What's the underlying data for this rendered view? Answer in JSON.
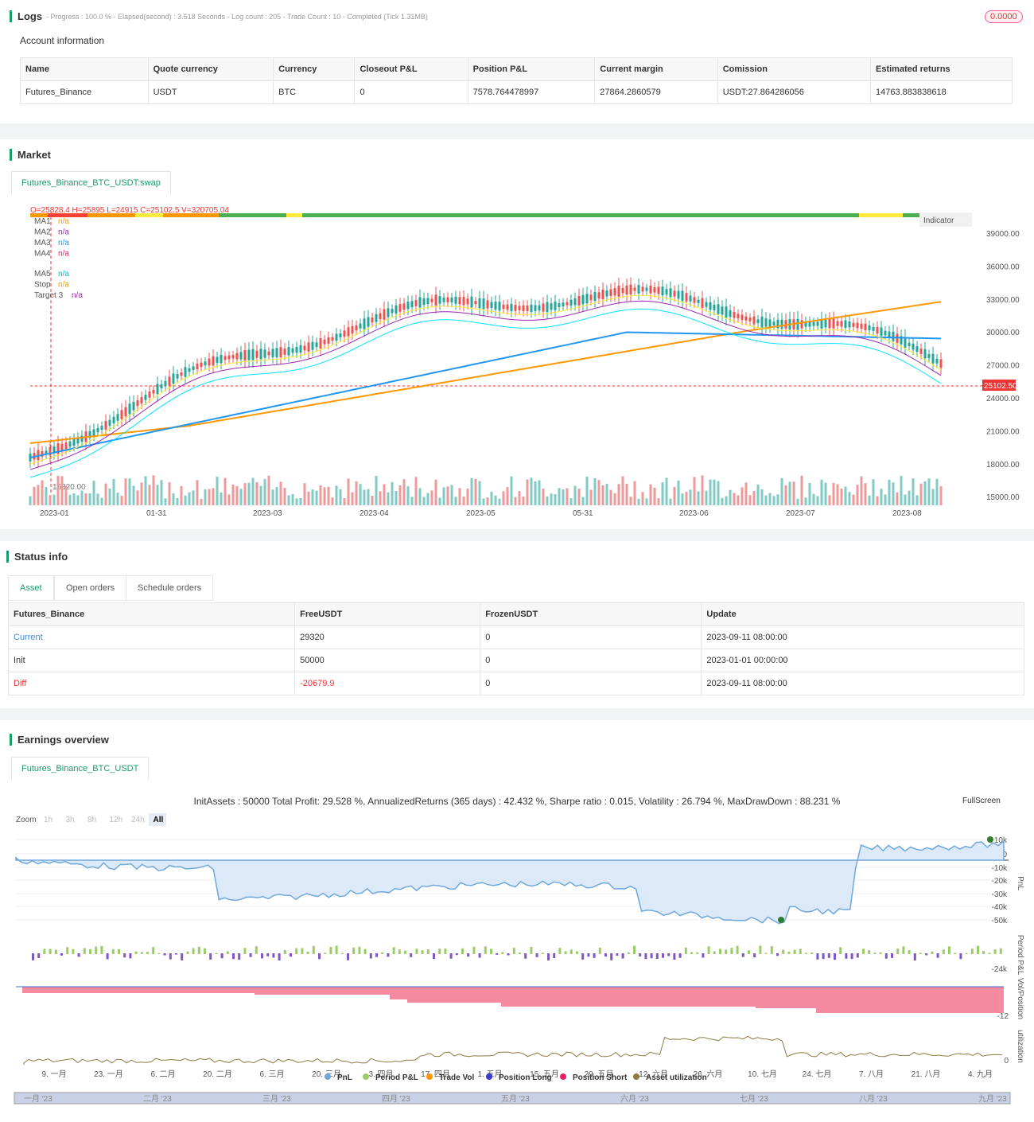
{
  "logs": {
    "title": "Logs",
    "summary": "- Progress : 100.0 % - Elapsed(second) : 3.518 Seconds - Log count : 205 - Trade Count : 10 - Completed (Tick 1.31MB)",
    "badge": "0.0000",
    "account_title": "Account information",
    "account_table": {
      "headers": [
        "Name",
        "Quote currency",
        "Currency",
        "Closeout P&L",
        "Position P&L",
        "Current margin",
        "Comission",
        "Estimated returns"
      ],
      "rows": [
        [
          "Futures_Binance",
          "USDT",
          "BTC",
          "0",
          "7578.764478997",
          "27864.2860579",
          "USDT:27.864286056",
          "14763.883838618"
        ]
      ]
    }
  },
  "market": {
    "title": "Market",
    "tab": "Futures_Binance_BTC_USDT:swap",
    "ohlc": "O=25828.4 H=25895 L=24915 C=25102.5 V=320705.04",
    "legend": [
      [
        "MA1",
        "n/a"
      ],
      [
        "MA2",
        "n/a"
      ],
      [
        "MA3",
        "n/a"
      ],
      [
        "MA4",
        "n/a"
      ],
      [
        "MA5",
        "n/a"
      ],
      [
        "Stop",
        "n/a"
      ],
      [
        "Target 3",
        "n/a"
      ]
    ],
    "indicator": "Indicator",
    "price_ticks": [
      "39000.00",
      "36000.00",
      "33000.00",
      "30000.00",
      "27000.00",
      "24000.00",
      "21000.00",
      "18000.00",
      "15000.00"
    ],
    "last_price": "25102.50",
    "low_label": "16320.00",
    "dates": [
      "2023-01",
      "01-31",
      "2023-03",
      "2023-04",
      "2023-05",
      "05-31",
      "2023-06",
      "2023-07",
      "2023-08"
    ]
  },
  "status": {
    "title": "Status info",
    "tabs": [
      "Asset",
      "Open orders",
      "Schedule orders"
    ],
    "table": {
      "headers": [
        "Futures_Binance",
        "FreeUSDT",
        "FrozenUSDT",
        "Update"
      ],
      "rows": [
        [
          "Current",
          "29320",
          "0",
          "2023-09-11 08:00:00"
        ],
        [
          "Init",
          "50000",
          "0",
          "2023-01-01 00:00:00"
        ],
        [
          "Diff",
          "-20679.9",
          "0",
          "2023-09-11 08:00:00"
        ]
      ]
    }
  },
  "earnings": {
    "title": "Earnings overview",
    "tab": "Futures_Binance_BTC_USDT",
    "summary": "InitAssets : 50000 Total Profit: 29.528 %, AnnualizedReturns (365 days) : 42.432 %, Sharpe ratio : 0.015, Volatility : 26.794 %, MaxDrawDown : 88.231 %",
    "fullscreen": "FullScreen",
    "zoom": "Zoom",
    "zoom_buttons": [
      "1h",
      "3h",
      "8h",
      "12h",
      "24h",
      "All"
    ],
    "pnl_ticks": [
      "10k",
      "0",
      "-10k",
      "-20k",
      "-30k",
      "-40k",
      "-50k"
    ],
    "period_tick": "-24k",
    "vol_tick": "-12",
    "util_tick": "0",
    "axis_titles": [
      "PnL",
      "Period P&L",
      "Vol/Position",
      "utilization"
    ],
    "x_labels": [
      "9. 一月",
      "23. 一月",
      "6. 二月",
      "20. 二月",
      "6. 三月",
      "20. 三月",
      "3. 四月",
      "17. 四月",
      "1. 五月",
      "15. 五月",
      "29. 五月",
      "12. 六月",
      "26. 六月",
      "10. 七月",
      "24. 七月",
      "7. 八月",
      "21. 八月",
      "4. 九月"
    ],
    "legend": [
      "PnL",
      "Period P&L",
      "Trade Vol",
      "Position Long",
      "Position Short",
      "Asset utilization"
    ],
    "navigator": [
      "一月 '23",
      "二月 '23",
      "三月 '23",
      "四月 '23",
      "五月 '23",
      "六月 '23",
      "七月 '23",
      "八月 '23",
      "九月 '23"
    ]
  }
}
